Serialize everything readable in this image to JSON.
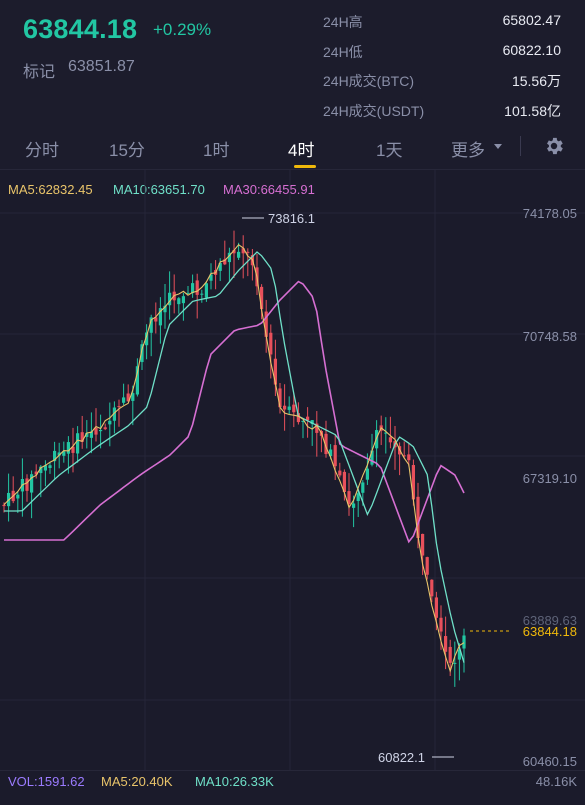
{
  "ticker": {
    "last_price": "63844.18",
    "change_pct": "+0.29%",
    "mark_label": "标记",
    "mark_price": "63851.87"
  },
  "stats": [
    {
      "label": "24H高",
      "value": "65802.47"
    },
    {
      "label": "24H低",
      "value": "60822.10"
    },
    {
      "label": "24H成交(BTC)",
      "value": "15.56万"
    },
    {
      "label": "24H成交(USDT)",
      "value": "101.58亿"
    }
  ],
  "tabs": [
    {
      "label": "分时",
      "active": false
    },
    {
      "label": "15分",
      "active": false
    },
    {
      "label": "1时",
      "active": false
    },
    {
      "label": "4时",
      "active": true
    },
    {
      "label": "1天",
      "active": false
    },
    {
      "label": "更多",
      "active": false
    }
  ],
  "settings_icon": "gear-icon",
  "ma_legend": {
    "ma5": "MA5:62832.45",
    "ma10": "MA10:63651.70",
    "ma30": "MA30:66455.91"
  },
  "y_axis_labels": [
    "74178.05",
    "70748.58",
    "67319.10",
    "63889.63",
    "60460.15"
  ],
  "current_price_tag": "63844.18",
  "annotations": {
    "high": "73816.1",
    "low": "60822.1"
  },
  "volume_bar": {
    "vol": "VOL:1591.62",
    "ma5": "MA5:20.40K",
    "ma10": "MA10:26.33K",
    "axis_max": "48.16K"
  },
  "colors": {
    "up": "#22c6a3",
    "down": "#e8505b",
    "ma5": "#e9c46a",
    "ma10": "#6fe0c8",
    "ma30": "#d66fd2",
    "accent": "#f0b90b",
    "vol_label": "#9b7bff"
  }
}
